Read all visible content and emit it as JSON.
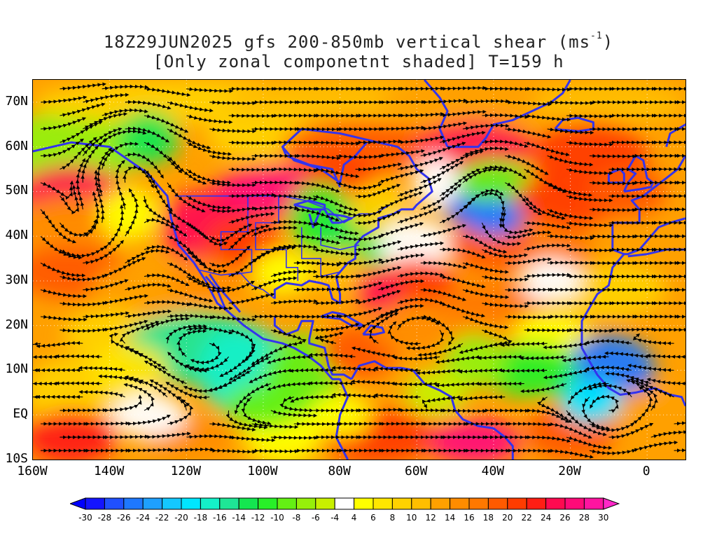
{
  "title": {
    "line1_prefix": "18Z29JUN2025 gfs 200-850mb vertical shear (ms",
    "line1_sup": "-1",
    "line1_suffix": ")",
    "line2": "[Only zonal componetnt shaded] T=159 h"
  },
  "map": {
    "lon_range": [
      -160,
      10
    ],
    "lat_range": [
      -10,
      75
    ],
    "lat_ticks": [
      {
        "value": 70,
        "label": "70N"
      },
      {
        "value": 60,
        "label": "60N"
      },
      {
        "value": 50,
        "label": "50N"
      },
      {
        "value": 40,
        "label": "40N"
      },
      {
        "value": 30,
        "label": "30N"
      },
      {
        "value": 20,
        "label": "20N"
      },
      {
        "value": 10,
        "label": "10N"
      },
      {
        "value": 0,
        "label": "EQ"
      },
      {
        "value": -10,
        "label": "10S"
      }
    ],
    "lon_ticks": [
      {
        "value": -160,
        "label": "160W"
      },
      {
        "value": -140,
        "label": "140W"
      },
      {
        "value": -120,
        "label": "120W"
      },
      {
        "value": -100,
        "label": "100W"
      },
      {
        "value": -80,
        "label": "80W"
      },
      {
        "value": -60,
        "label": "60W"
      },
      {
        "value": -40,
        "label": "40W"
      },
      {
        "value": -20,
        "label": "20W"
      },
      {
        "value": 0,
        "label": "0"
      }
    ],
    "shading_field": "zonal component of 200-850mb vertical shear",
    "overlay": "shear streamlines with arrowheads",
    "coastlines_color": "#3333ee",
    "contour_color": "#a020a0"
  },
  "colorbar": {
    "labels": [
      "-30",
      "-28",
      "-26",
      "-24",
      "-22",
      "-20",
      "-18",
      "-16",
      "-14",
      "-12",
      "-10",
      "-8",
      "-6",
      "-4",
      "4",
      "6",
      "8",
      "10",
      "12",
      "14",
      "16",
      "18",
      "20",
      "22",
      "24",
      "26",
      "28",
      "30"
    ],
    "colors": [
      "#1414ff",
      "#2050ff",
      "#1e78ff",
      "#1ea0ff",
      "#14c8ff",
      "#00e6ff",
      "#14f0c8",
      "#1ee696",
      "#14e650",
      "#28f028",
      "#64f014",
      "#96f00a",
      "#c8f000",
      "#ffffff",
      "#ffff00",
      "#ffe600",
      "#ffd200",
      "#ffbe00",
      "#ffa000",
      "#ff8c00",
      "#ff7800",
      "#ff5a00",
      "#ff3c00",
      "#ff1e14",
      "#ff0a50",
      "#ff0a78",
      "#ff14a0"
    ],
    "under_color": "#0000ff",
    "over_color": "#ff28c8"
  }
}
